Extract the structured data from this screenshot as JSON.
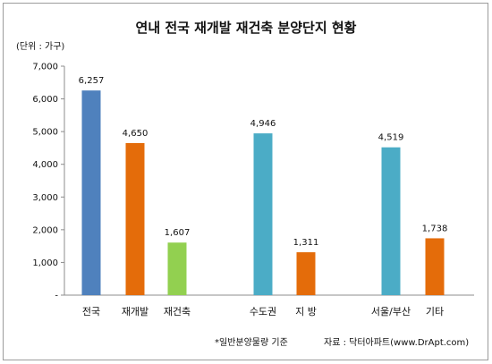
{
  "chart_data": {
    "type": "bar",
    "title": "연내 전국 재개발 재건축 분양단지 현황",
    "unit_label": "(단위 : 가구)",
    "categories": [
      "전국",
      "재개발",
      "재건축",
      "수도권",
      "지 방",
      "서울/부산",
      "기타"
    ],
    "values": [
      6257,
      4650,
      1607,
      4946,
      1311,
      4519,
      1738
    ],
    "value_labels": [
      "6,257",
      "4,650",
      "1,607",
      "4,946",
      "1,311",
      "4,519",
      "1,738"
    ],
    "bar_colors": [
      "#4f81bd",
      "#e46c0a",
      "#92d050",
      "#4bacc6",
      "#e46c0a",
      "#4bacc6",
      "#e46c0a"
    ],
    "ylim": [
      0,
      7000
    ],
    "yticks": [
      0,
      1000,
      2000,
      3000,
      4000,
      5000,
      6000,
      7000
    ],
    "ytick_labels": [
      "-",
      "1,000",
      "2,000",
      "3,000",
      "4,000",
      "5,000",
      "6,000",
      "7,000"
    ],
    "grid": false,
    "legend": "none",
    "footnote": "*일반분양물량 기준",
    "source": "자료 : 닥터아파트(www.DrApt.com)"
  }
}
